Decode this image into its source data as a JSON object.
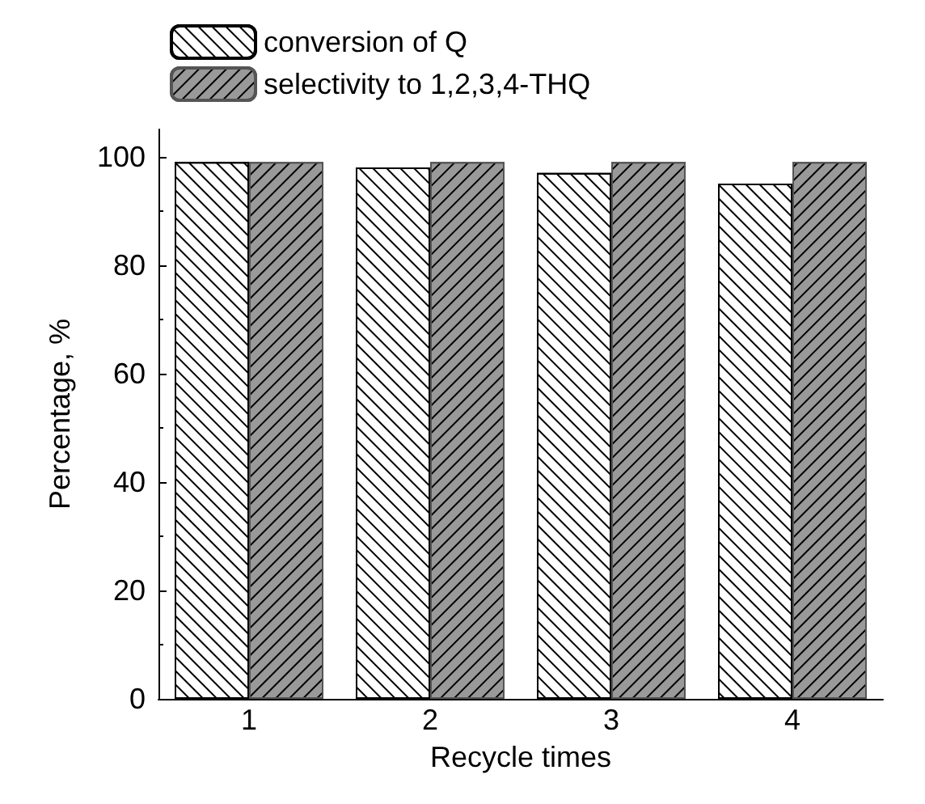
{
  "chart_data": {
    "type": "bar",
    "xlabel": "Recycle times",
    "ylabel": "Percentage, %",
    "categories": [
      "1",
      "2",
      "3",
      "4"
    ],
    "series": [
      {
        "name": "conversion of Q",
        "color": "#ffffff",
        "values": [
          99,
          98,
          97,
          95
        ]
      },
      {
        "name": "selectivity to 1,2,3,4-THQ",
        "color": "#999999",
        "values": [
          99,
          99,
          99,
          99
        ]
      }
    ],
    "ylim": [
      0,
      105
    ],
    "yticks": [
      0,
      20,
      40,
      60,
      80,
      100
    ],
    "grid": false,
    "legend": "top left"
  }
}
